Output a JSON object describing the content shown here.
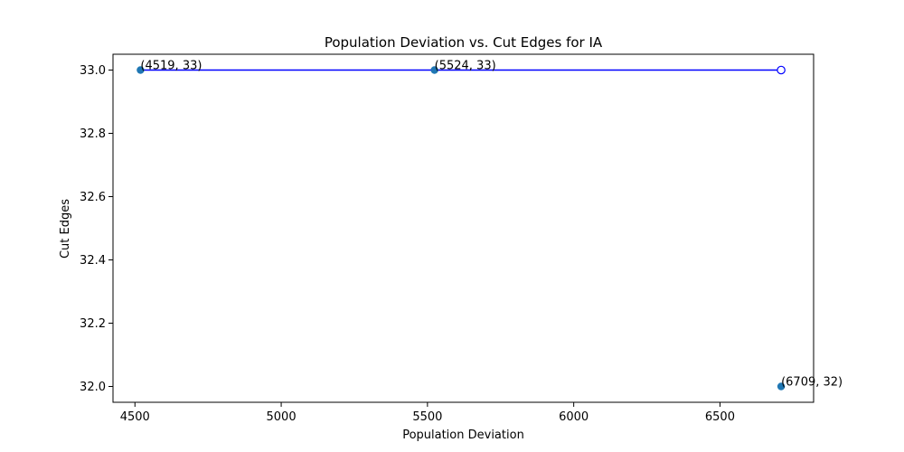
{
  "chart_data": {
    "type": "scatter",
    "title": "Population Deviation vs. Cut Edges for IA",
    "xlabel": "Population Deviation",
    "ylabel": "Cut Edges",
    "xlim": [
      4425,
      6820
    ],
    "ylim": [
      31.95,
      33.05
    ],
    "xticks": [
      4500,
      5000,
      5500,
      6000,
      6500
    ],
    "yticks": [
      32.0,
      32.2,
      32.4,
      32.6,
      32.8,
      33.0
    ],
    "xtick_labels": [
      "4500",
      "5000",
      "5500",
      "6000",
      "6500"
    ],
    "ytick_labels": [
      "32.0",
      "32.2",
      "32.4",
      "32.6",
      "32.8",
      "33.0"
    ],
    "grid": false,
    "legend": "none",
    "points": [
      {
        "x": 4519,
        "y": 33,
        "label": "(4519, 33)"
      },
      {
        "x": 5524,
        "y": 33,
        "label": "(5524, 33)"
      },
      {
        "x": 6709,
        "y": 32,
        "label": "(6709, 32)"
      }
    ],
    "line": {
      "x": [
        4519,
        5524,
        6709
      ],
      "y": [
        33,
        33,
        33
      ],
      "end_marker": "open-circle"
    },
    "colors": {
      "point": "#1f77b4",
      "line": "#0000ff"
    }
  }
}
